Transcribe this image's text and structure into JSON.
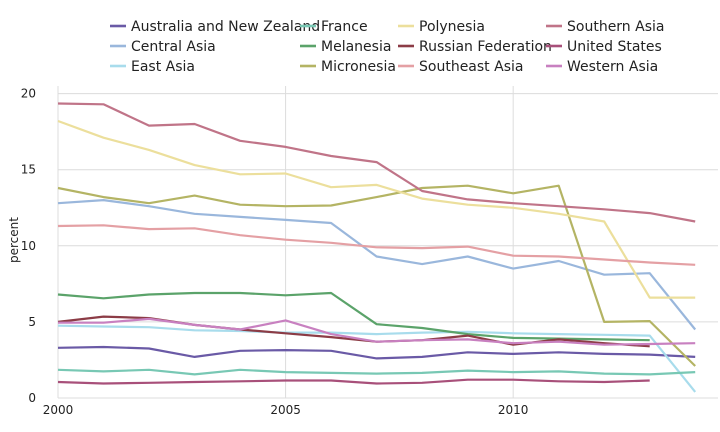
{
  "chart_data": {
    "type": "line",
    "title": "",
    "xlabel": "",
    "ylabel": "percent",
    "xlim": [
      2000,
      2014.5
    ],
    "ylim": [
      0,
      20.5
    ],
    "xticks": [
      2000,
      2005,
      2010
    ],
    "yticks": [
      0,
      5,
      10,
      15,
      20
    ],
    "grid": true,
    "legend_position": "top",
    "x": [
      2000,
      2001,
      2002,
      2003,
      2004,
      2005,
      2006,
      2007,
      2008,
      2009,
      2010,
      2011,
      2012,
      2013,
      2014
    ],
    "series": [
      {
        "name": "Australia and New Zealand",
        "color": "#6a5aa6",
        "values": [
          3.3,
          3.35,
          3.25,
          2.7,
          3.1,
          3.15,
          3.1,
          2.6,
          2.7,
          3.0,
          2.9,
          3.0,
          2.9,
          2.85,
          2.7
        ]
      },
      {
        "name": "Central Asia",
        "color": "#9ab7dc",
        "values": [
          12.8,
          13.0,
          12.6,
          12.1,
          11.9,
          11.7,
          11.5,
          9.3,
          8.8,
          9.3,
          8.5,
          9.0,
          8.1,
          8.2,
          4.5
        ]
      },
      {
        "name": "East Asia",
        "color": "#a8dcec",
        "values": [
          4.75,
          4.7,
          4.65,
          4.45,
          4.4,
          4.3,
          4.3,
          4.2,
          4.3,
          4.35,
          4.25,
          4.2,
          4.15,
          4.1,
          0.4
        ]
      },
      {
        "name": "France",
        "color": "#78c8b4",
        "values": [
          1.85,
          1.75,
          1.85,
          1.55,
          1.85,
          1.7,
          1.65,
          1.6,
          1.65,
          1.8,
          1.7,
          1.75,
          1.6,
          1.55,
          1.7
        ]
      },
      {
        "name": "Melanesia",
        "color": "#5ba36a",
        "values": [
          6.8,
          6.55,
          6.8,
          6.9,
          6.9,
          6.75,
          6.9,
          4.85,
          4.6,
          4.2,
          3.95,
          3.9,
          3.85,
          3.8,
          null
        ]
      },
      {
        "name": "Micronesia",
        "color": "#b4b464",
        "values": [
          13.8,
          13.2,
          12.8,
          13.3,
          12.7,
          12.6,
          12.65,
          13.2,
          13.8,
          13.95,
          13.45,
          13.95,
          5.0,
          5.05,
          2.1
        ]
      },
      {
        "name": "Polynesia",
        "color": "#ecdf9c",
        "values": [
          18.2,
          17.1,
          16.3,
          15.3,
          14.7,
          14.75,
          13.85,
          14.0,
          13.1,
          12.7,
          12.5,
          12.1,
          11.6,
          6.6,
          6.6
        ]
      },
      {
        "name": "Russian Federation",
        "color": "#8c3c46",
        "values": [
          5.0,
          5.35,
          5.25,
          4.8,
          4.5,
          4.25,
          4.0,
          3.7,
          3.8,
          4.1,
          3.5,
          3.85,
          3.6,
          3.4,
          null
        ]
      },
      {
        "name": "Southeast Asia",
        "color": "#e4a0a4",
        "values": [
          11.3,
          11.35,
          11.1,
          11.15,
          10.7,
          10.4,
          10.2,
          9.9,
          9.85,
          9.95,
          9.35,
          9.3,
          9.1,
          8.9,
          8.75
        ]
      },
      {
        "name": "Southern Asia",
        "color": "#c07488",
        "values": [
          19.35,
          19.3,
          17.9,
          18.0,
          16.9,
          16.5,
          15.9,
          15.5,
          13.6,
          13.05,
          12.8,
          12.6,
          12.4,
          12.15,
          11.6
        ]
      },
      {
        "name": "United States",
        "color": "#a8507a",
        "values": [
          1.05,
          0.95,
          1.0,
          1.05,
          1.1,
          1.15,
          1.15,
          0.95,
          1.0,
          1.2,
          1.2,
          1.1,
          1.05,
          1.15,
          null
        ]
      },
      {
        "name": "Western Asia",
        "color": "#c880c0",
        "values": [
          4.95,
          4.95,
          5.2,
          4.8,
          4.5,
          5.1,
          4.2,
          3.7,
          3.8,
          3.85,
          3.6,
          3.7,
          3.5,
          3.55,
          3.6
        ]
      }
    ]
  }
}
